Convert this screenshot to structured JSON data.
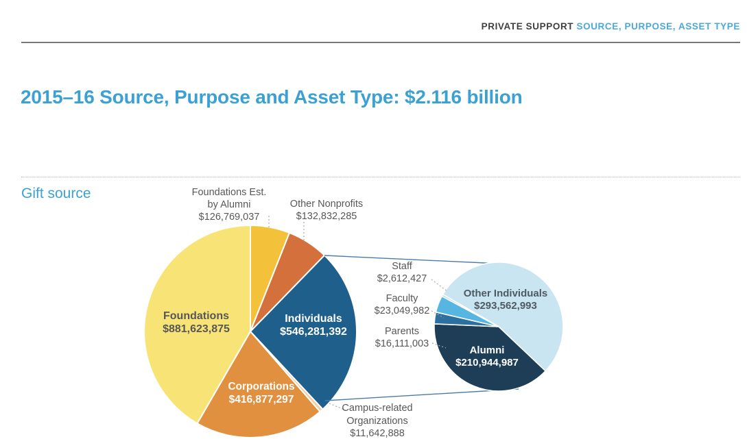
{
  "header": {
    "section": "PRIVATE SUPPORT",
    "subsection": "SOURCE, PURPOSE, ASSET TYPE"
  },
  "title": "2015–16 Source, Purpose and Asset Type: $2.116 billion",
  "section_label": "Gift source",
  "colors": {
    "accent_blue": "#3ba1d3",
    "header_link_blue": "#4aa9da",
    "text_gray": "#575757",
    "connector_blue": "#4a7ba6",
    "leader_gray": "#a8a8a8"
  },
  "chart_data": {
    "type": "pie",
    "title": "Gift source",
    "total_label": "$2.116 billion",
    "main_pie": {
      "start_angle_deg": 0,
      "slices": [
        {
          "label": "Foundations Est. by Alumni",
          "label_lines": [
            "Foundations Est.",
            "by Alumni"
          ],
          "value": 126769037,
          "display": "$126,769,037",
          "color": "#f3c23a"
        },
        {
          "label": "Other Nonprofits",
          "value": 132832285,
          "display": "$132,832,285",
          "color": "#d4703c"
        },
        {
          "label": "Individuals",
          "value": 546281392,
          "display": "$546,281,392",
          "color": "#1f5f8b"
        },
        {
          "label": "Campus-related Organizations",
          "label_lines": [
            "Campus-related",
            "Organizations"
          ],
          "value": 11642888,
          "display": "$11,642,888",
          "color": "#f0cfa0"
        },
        {
          "label": "Corporations",
          "value": 416877297,
          "display": "$416,877,297",
          "color": "#e1903f"
        },
        {
          "label": "Foundations",
          "value": 881623875,
          "display": "$881,623,875",
          "color": "#f8e377"
        }
      ]
    },
    "detail_pie": {
      "parent_label": "Individuals",
      "start_angle_deg": 300,
      "slices": [
        {
          "label": "Other Individuals",
          "value": 293562993,
          "display": "$293,562,993",
          "color": "#c9e5f1"
        },
        {
          "label": "Alumni",
          "value": 210944987,
          "display": "$210,944,987",
          "color": "#1d3e56"
        },
        {
          "label": "Parents",
          "value": 16111003,
          "display": "$16,111,003",
          "color": "#2d6f9f"
        },
        {
          "label": "Faculty",
          "value": 23049982,
          "display": "$23,049,982",
          "color": "#57b6e1"
        },
        {
          "label": "Staff",
          "value": 2612427,
          "display": "$2,612,427",
          "color": "#9fd3ea"
        }
      ]
    }
  }
}
